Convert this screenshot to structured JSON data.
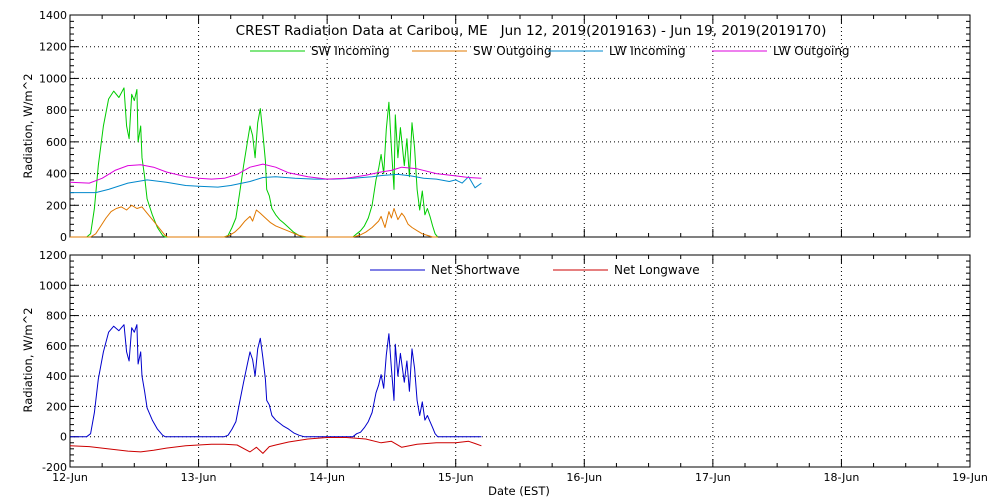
{
  "colors": {
    "sw_incoming": "#00cc00",
    "sw_outgoing": "#e07800",
    "lw_incoming": "#0088cc",
    "lw_outgoing": "#dd00dd",
    "net_shortwave": "#0000cc",
    "net_longwave": "#cc0000"
  },
  "chart_data": [
    {
      "type": "line",
      "title": "CREST Radiation Data at Caribou, ME   Jun 12, 2019(2019163) - Jun 19, 2019(2019170)",
      "xlabel": "",
      "ylabel": "Radiation, W/m^2",
      "xlim": [
        0,
        7
      ],
      "ylim": [
        0,
        1400
      ],
      "yticks": [
        0,
        200,
        400,
        600,
        800,
        1000,
        1200,
        1400
      ],
      "grid": true,
      "legend_position": "top",
      "series": [
        {
          "name": "SW Incoming",
          "color_key": "sw_incoming",
          "x": [
            0,
            0.13,
            0.16,
            0.19,
            0.22,
            0.26,
            0.3,
            0.34,
            0.38,
            0.42,
            0.44,
            0.46,
            0.48,
            0.5,
            0.52,
            0.53,
            0.55,
            0.56,
            0.58,
            0.6,
            0.64,
            0.68,
            0.72,
            0.74,
            0.76,
            0.78,
            1.0,
            1.2,
            1.23,
            1.26,
            1.29,
            1.32,
            1.35,
            1.38,
            1.4,
            1.42,
            1.44,
            1.46,
            1.48,
            1.5,
            1.52,
            1.53,
            1.55,
            1.57,
            1.6,
            1.63,
            1.66,
            1.7,
            1.74,
            1.78,
            1.82,
            1.84,
            2.0,
            2.2,
            2.23,
            2.26,
            2.29,
            2.32,
            2.35,
            2.38,
            2.4,
            2.42,
            2.44,
            2.46,
            2.48,
            2.5,
            2.52,
            2.53,
            2.55,
            2.57,
            2.6,
            2.62,
            2.64,
            2.66,
            2.68,
            2.7,
            2.72,
            2.74,
            2.76,
            2.78,
            2.8,
            2.82,
            2.84,
            2.86
          ],
          "y": [
            0,
            0,
            20,
            180,
            450,
            700,
            870,
            920,
            880,
            940,
            700,
            620,
            900,
            860,
            930,
            600,
            700,
            500,
            380,
            240,
            140,
            60,
            10,
            0,
            0,
            0,
            0,
            0,
            10,
            60,
            120,
            280,
            450,
            600,
            700,
            640,
            500,
            720,
            810,
            650,
            480,
            300,
            260,
            180,
            140,
            110,
            90,
            60,
            30,
            10,
            0,
            0,
            0,
            0,
            20,
            40,
            70,
            120,
            200,
            360,
            430,
            520,
            400,
            680,
            850,
            560,
            300,
            770,
            500,
            690,
            450,
            620,
            380,
            720,
            560,
            300,
            170,
            290,
            140,
            180,
            130,
            70,
            20,
            0
          ]
        },
        {
          "name": "SW Outgoing",
          "color_key": "sw_outgoing",
          "x": [
            0,
            0.13,
            0.16,
            0.2,
            0.24,
            0.28,
            0.32,
            0.36,
            0.4,
            0.44,
            0.48,
            0.52,
            0.56,
            0.6,
            0.65,
            0.7,
            0.74,
            0.76,
            0.78,
            1.0,
            1.2,
            1.24,
            1.28,
            1.32,
            1.36,
            1.4,
            1.42,
            1.45,
            1.48,
            1.52,
            1.56,
            1.6,
            1.66,
            1.72,
            1.78,
            1.84,
            2.0,
            2.2,
            2.25,
            2.3,
            2.35,
            2.4,
            2.42,
            2.45,
            2.48,
            2.5,
            2.52,
            2.55,
            2.58,
            2.6,
            2.63,
            2.66,
            2.7,
            2.74,
            2.78,
            2.82,
            2.86
          ],
          "y": [
            0,
            0,
            0,
            20,
            70,
            120,
            160,
            180,
            190,
            170,
            200,
            180,
            190,
            150,
            100,
            50,
            10,
            0,
            0,
            0,
            0,
            10,
            30,
            60,
            100,
            130,
            100,
            170,
            150,
            120,
            90,
            70,
            50,
            30,
            10,
            0,
            0,
            0,
            10,
            30,
            60,
            100,
            130,
            60,
            160,
            120,
            180,
            110,
            150,
            130,
            80,
            60,
            40,
            20,
            10,
            0,
            0
          ]
        },
        {
          "name": "LW Incoming",
          "color_key": "lw_incoming",
          "x": [
            0,
            0.2,
            0.3,
            0.45,
            0.6,
            0.75,
            0.9,
            1.0,
            1.15,
            1.25,
            1.4,
            1.5,
            1.6,
            1.75,
            1.9,
            2.05,
            2.2,
            2.35,
            2.45,
            2.55,
            2.65,
            2.75,
            2.85,
            2.95,
            3.0,
            3.05,
            3.1,
            3.15,
            3.2
          ],
          "y": [
            280,
            280,
            300,
            340,
            360,
            345,
            325,
            320,
            315,
            325,
            350,
            375,
            380,
            370,
            365,
            365,
            370,
            380,
            390,
            395,
            385,
            370,
            365,
            350,
            360,
            340,
            380,
            310,
            340
          ]
        },
        {
          "name": "LW Outgoing",
          "color_key": "lw_outgoing",
          "x": [
            0,
            0.15,
            0.25,
            0.35,
            0.45,
            0.55,
            0.65,
            0.75,
            0.9,
            1.0,
            1.1,
            1.2,
            1.3,
            1.4,
            1.5,
            1.6,
            1.7,
            1.85,
            2.0,
            2.15,
            2.3,
            2.42,
            2.5,
            2.58,
            2.7,
            2.85,
            3.0,
            3.1,
            3.2
          ],
          "y": [
            345,
            340,
            370,
            420,
            450,
            455,
            440,
            410,
            380,
            370,
            365,
            370,
            395,
            440,
            460,
            440,
            405,
            380,
            365,
            370,
            390,
            410,
            420,
            440,
            430,
            400,
            385,
            375,
            370
          ]
        }
      ]
    },
    {
      "type": "line",
      "title": "",
      "xlabel": "Date (EST)",
      "ylabel": "Radiation, W/m^2",
      "xlim": [
        0,
        7
      ],
      "ylim": [
        -200,
        1200
      ],
      "yticks": [
        -200,
        0,
        200,
        400,
        600,
        800,
        1000,
        1200
      ],
      "categories": [
        "12-Jun",
        "13-Jun",
        "14-Jun",
        "15-Jun",
        "16-Jun",
        "17-Jun",
        "18-Jun",
        "19-Jun"
      ],
      "grid": true,
      "legend_position": "top",
      "series": [
        {
          "name": "Net Shortwave",
          "color_key": "net_shortwave",
          "x": [
            0,
            0.13,
            0.16,
            0.19,
            0.22,
            0.26,
            0.3,
            0.34,
            0.38,
            0.42,
            0.44,
            0.46,
            0.48,
            0.5,
            0.52,
            0.53,
            0.55,
            0.56,
            0.58,
            0.6,
            0.64,
            0.68,
            0.72,
            0.74,
            0.76,
            0.78,
            1.0,
            1.2,
            1.23,
            1.26,
            1.29,
            1.32,
            1.35,
            1.38,
            1.4,
            1.42,
            1.44,
            1.46,
            1.48,
            1.5,
            1.52,
            1.53,
            1.55,
            1.57,
            1.6,
            1.63,
            1.66,
            1.7,
            1.74,
            1.78,
            1.82,
            1.84,
            2.0,
            2.2,
            2.23,
            2.26,
            2.29,
            2.32,
            2.35,
            2.38,
            2.4,
            2.42,
            2.44,
            2.46,
            2.48,
            2.5,
            2.52,
            2.53,
            2.55,
            2.57,
            2.6,
            2.62,
            2.64,
            2.66,
            2.68,
            2.7,
            2.72,
            2.74,
            2.76,
            2.78,
            2.8,
            2.82,
            2.84,
            2.86,
            3.0,
            3.2
          ],
          "y": [
            0,
            0,
            20,
            160,
            380,
            560,
            690,
            730,
            700,
            740,
            560,
            500,
            720,
            690,
            740,
            480,
            560,
            400,
            300,
            190,
            110,
            50,
            10,
            0,
            0,
            0,
            0,
            0,
            10,
            50,
            100,
            230,
            360,
            480,
            560,
            510,
            400,
            580,
            650,
            520,
            380,
            240,
            210,
            140,
            110,
            90,
            70,
            50,
            25,
            10,
            0,
            0,
            0,
            0,
            20,
            30,
            60,
            100,
            160,
            290,
            340,
            410,
            320,
            540,
            680,
            450,
            240,
            610,
            400,
            550,
            360,
            500,
            300,
            580,
            450,
            240,
            140,
            230,
            110,
            140,
            100,
            60,
            20,
            0,
            0,
            0
          ]
        },
        {
          "name": "Net Longwave",
          "color_key": "net_longwave",
          "x": [
            0,
            0.15,
            0.25,
            0.35,
            0.45,
            0.55,
            0.65,
            0.75,
            0.9,
            1.0,
            1.1,
            1.2,
            1.3,
            1.4,
            1.45,
            1.5,
            1.55,
            1.6,
            1.7,
            1.85,
            2.0,
            2.15,
            2.3,
            2.42,
            2.5,
            2.58,
            2.7,
            2.85,
            3.0,
            3.1,
            3.15,
            3.2
          ],
          "y": [
            -60,
            -65,
            -75,
            -85,
            -95,
            -100,
            -90,
            -75,
            -60,
            -55,
            -50,
            -50,
            -55,
            -100,
            -70,
            -110,
            -65,
            -55,
            -35,
            -15,
            -5,
            -5,
            -15,
            -40,
            -30,
            -70,
            -50,
            -40,
            -40,
            -30,
            -45,
            -60
          ]
        }
      ]
    }
  ]
}
